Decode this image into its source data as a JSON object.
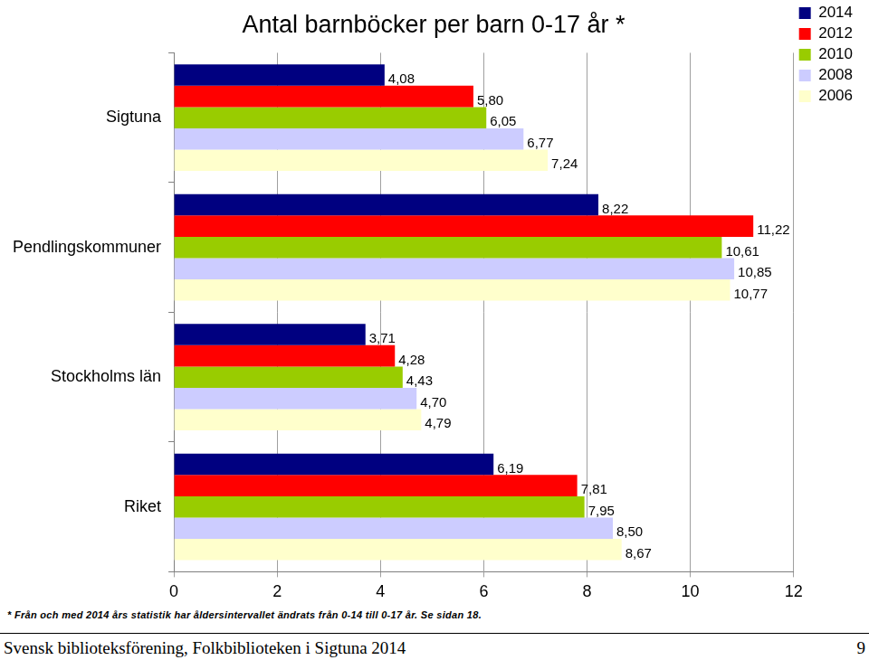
{
  "chart_data": {
    "type": "bar",
    "title": "Antal barnböcker per barn 0-17 år *",
    "orientation": "horizontal",
    "categories": [
      "Sigtuna",
      "Pendlingskommuner",
      "Stockholms län",
      "Riket"
    ],
    "series": [
      {
        "name": "2014",
        "color": "#000080",
        "values": [
          4.08,
          8.22,
          3.71,
          6.19
        ],
        "value_labels": [
          "4,08",
          "8,22",
          "3,71",
          "6,19"
        ]
      },
      {
        "name": "2012",
        "color": "#ff0000",
        "values": [
          5.8,
          11.22,
          4.28,
          7.81
        ],
        "value_labels": [
          "5,80",
          "11,22",
          "4,28",
          "7,81"
        ]
      },
      {
        "name": "2010",
        "color": "#99cc00",
        "values": [
          6.05,
          10.61,
          4.43,
          7.95
        ],
        "value_labels": [
          "6,05",
          "10,61",
          "4,43",
          "7,95"
        ]
      },
      {
        "name": "2008",
        "color": "#ccccff",
        "values": [
          6.77,
          10.85,
          4.7,
          8.5
        ],
        "value_labels": [
          "6,77",
          "10,85",
          "4,70",
          "8,50"
        ]
      },
      {
        "name": "2006",
        "color": "#ffffcc",
        "values": [
          7.24,
          10.77,
          4.79,
          8.67
        ],
        "value_labels": [
          "7,24",
          "10,77",
          "4,79",
          "8,67"
        ]
      }
    ],
    "xlim": [
      0,
      12
    ],
    "xticks": [
      0,
      2,
      4,
      6,
      8,
      10,
      12
    ],
    "grid": true,
    "legend": "top-right",
    "data_labels": true,
    "annotations": [
      "* Från och med 2014 års statistik har åldersintervallet ändrats från 0-14 till 0-17 år. Se sidan 18."
    ]
  },
  "footer": {
    "text": "Svensk biblioteksförening, Folkbiblioteken i Sigtuna 2014",
    "page": "9"
  }
}
